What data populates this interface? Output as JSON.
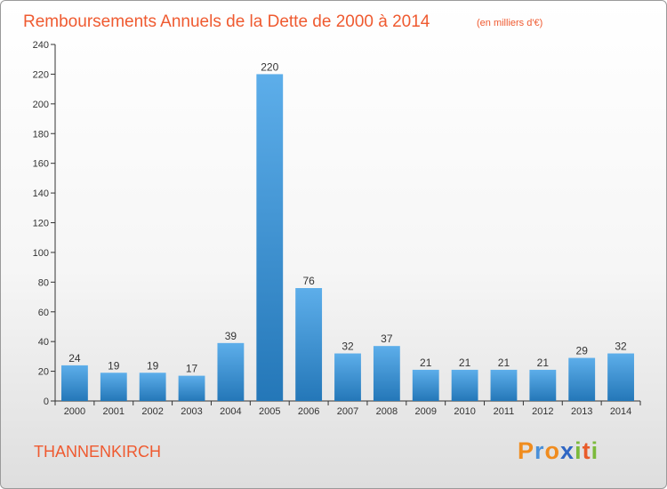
{
  "chart_data": {
    "type": "bar",
    "title": "Remboursements Annuels de la Dette de 2000 à 2014",
    "unit": "(en milliers d'€)",
    "categories": [
      "2000",
      "2001",
      "2002",
      "2003",
      "2004",
      "2005",
      "2006",
      "2007",
      "2008",
      "2009",
      "2010",
      "2011",
      "2012",
      "2013",
      "2014"
    ],
    "values": [
      24,
      19,
      19,
      17,
      39,
      220,
      76,
      32,
      37,
      21,
      21,
      21,
      21,
      29,
      32
    ],
    "ylim": [
      0,
      240
    ],
    "yticks": [
      0,
      20,
      40,
      60,
      80,
      100,
      120,
      140,
      160,
      180,
      200,
      220,
      240
    ],
    "xlabel": "",
    "ylabel": "",
    "grid": false,
    "colors": {
      "bar_top": "#5daeea",
      "bar_bottom": "#2477b8",
      "title": "#ef5a30"
    }
  },
  "commune": "THANNENKIRCH",
  "logo": {
    "text": "Proxiti",
    "letters": [
      "P",
      "r",
      "o",
      "x",
      "i",
      "t",
      "i"
    ],
    "colors": [
      "#f08c1e",
      "#4a90d9",
      "#f08c1e",
      "#2f66c4",
      "#7cba3c",
      "#e85b2a",
      "#7cba3c"
    ]
  }
}
